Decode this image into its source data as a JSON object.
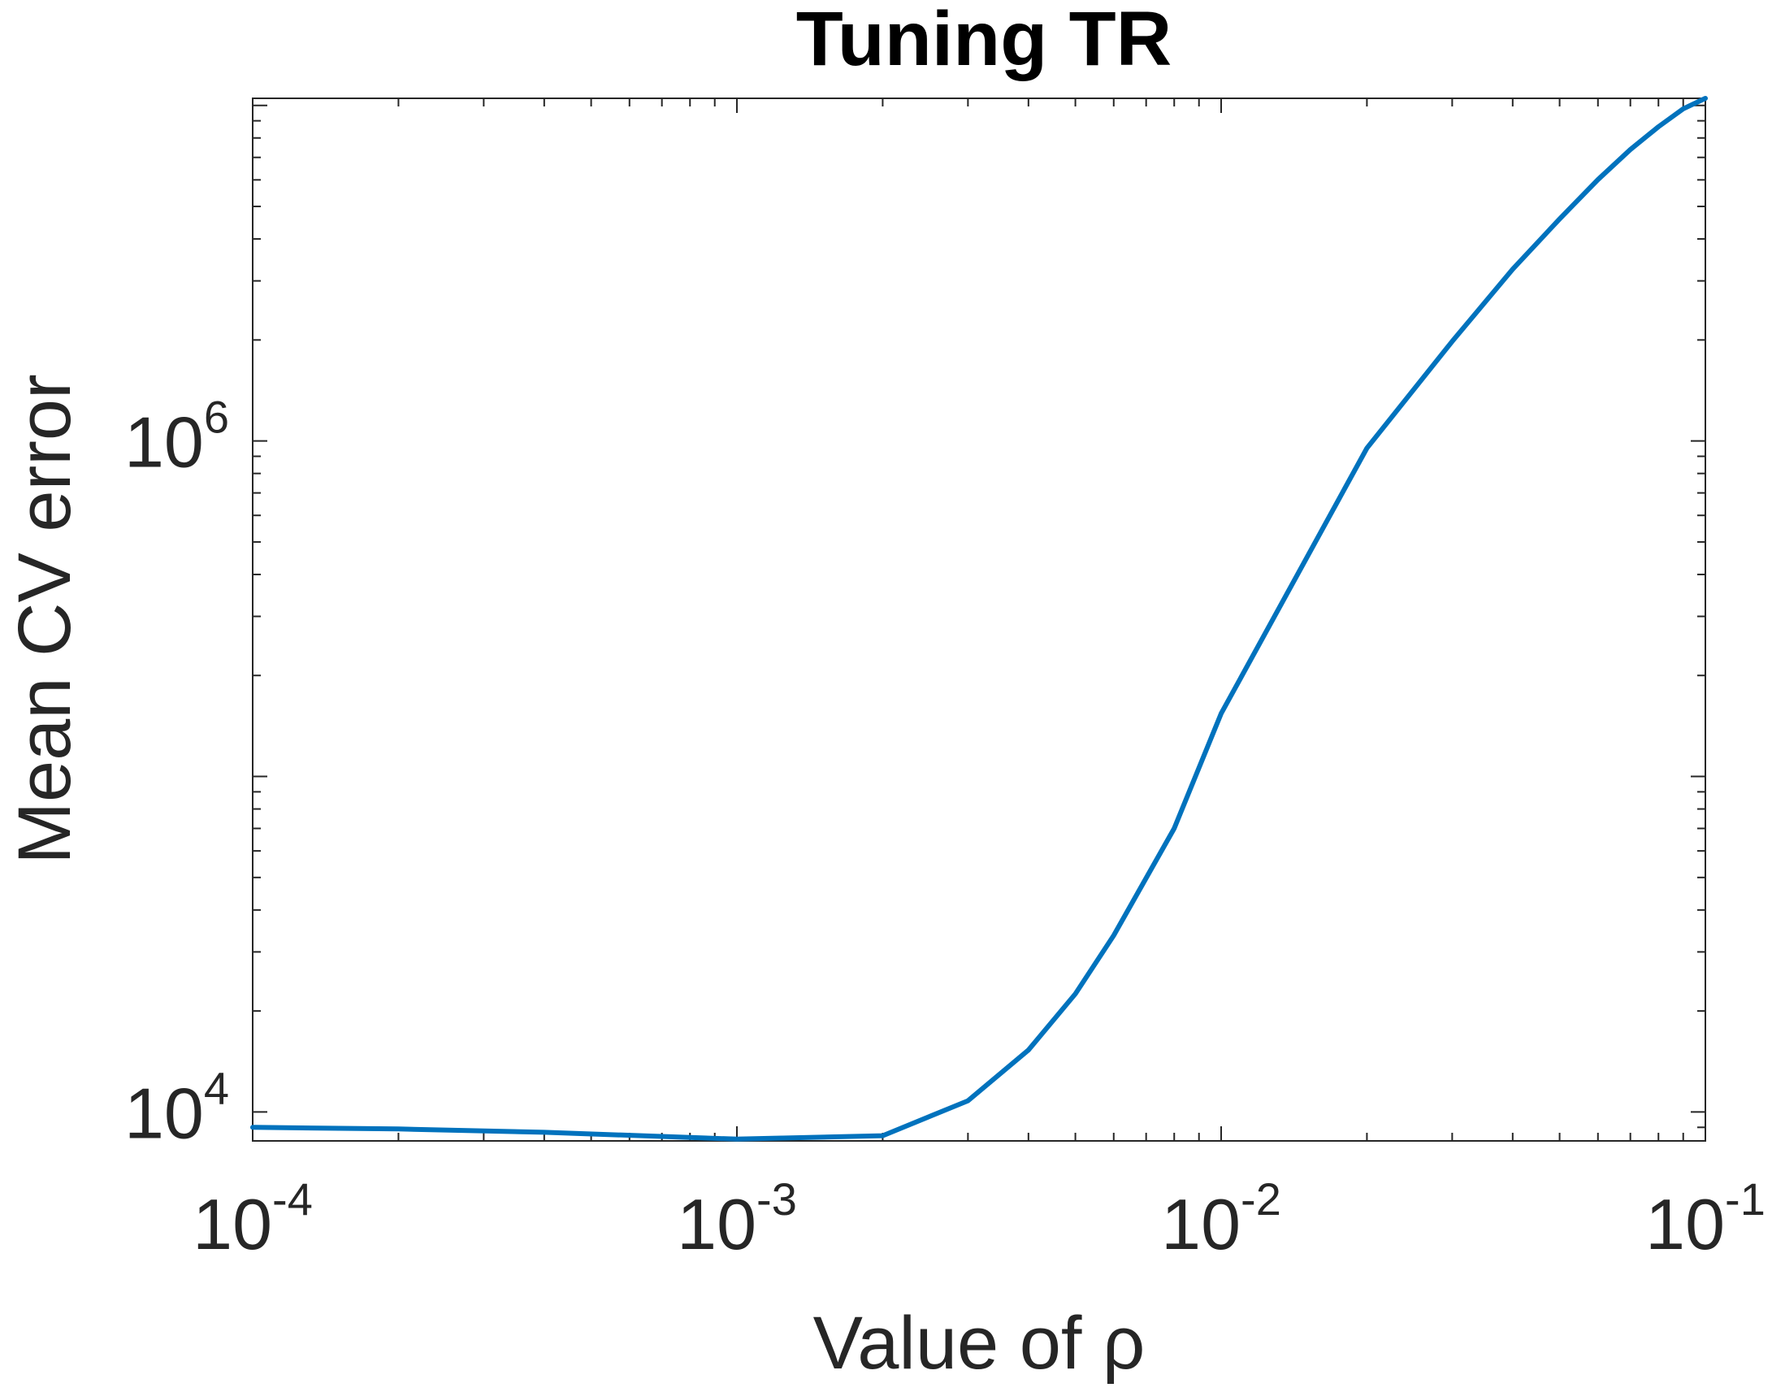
{
  "chart_data": {
    "type": "line",
    "title": "Tuning TR",
    "xlabel": "Value of ρ",
    "ylabel": "Mean CV error",
    "xscale": "log",
    "yscale": "log",
    "xlim": [
      0.0001,
      0.1
    ],
    "ylim": [
      8200,
      10500000
    ],
    "x_ticks": [
      {
        "value": 0.0001,
        "base": "10",
        "exp": "-4"
      },
      {
        "value": 0.001,
        "base": "10",
        "exp": "-3"
      },
      {
        "value": 0.01,
        "base": "10",
        "exp": "-2"
      },
      {
        "value": 0.1,
        "base": "10",
        "exp": "-1"
      }
    ],
    "y_ticks": [
      {
        "value": 10000,
        "base": "10",
        "exp": "4"
      },
      {
        "value": 1000000,
        "base": "10",
        "exp": "6"
      }
    ],
    "grid": false,
    "series": [
      {
        "color": "#0072BD",
        "x": [
          0.0001,
          0.0002,
          0.0004,
          0.001,
          0.002,
          0.003,
          0.004,
          0.005,
          0.006,
          0.008,
          0.01,
          0.02,
          0.03,
          0.04,
          0.05,
          0.06,
          0.07,
          0.08,
          0.09,
          0.1
        ],
        "y": [
          9000,
          8900,
          8700,
          8300,
          8500,
          10800,
          15300,
          22500,
          33600,
          70000,
          154000,
          952000,
          1980000,
          3250000,
          4590000,
          6010000,
          7390000,
          8640000,
          9770000,
          10500000
        ]
      }
    ]
  }
}
